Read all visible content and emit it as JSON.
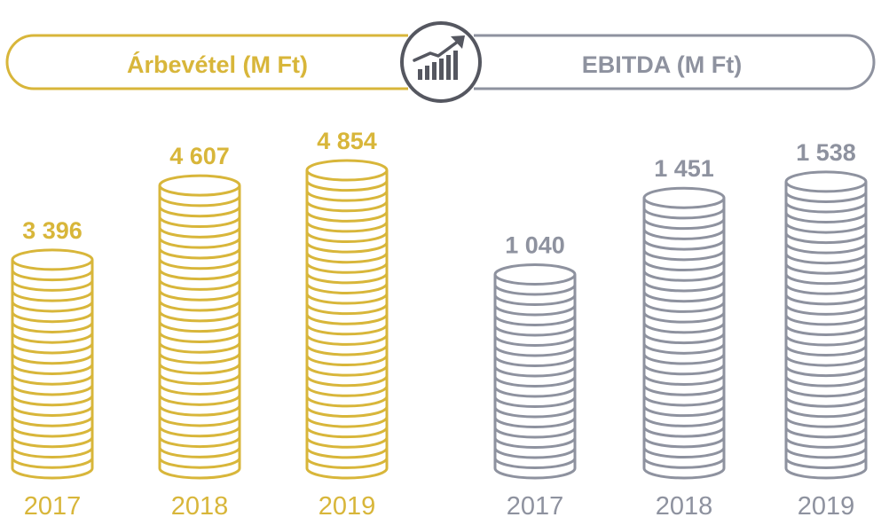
{
  "colors": {
    "gold": "#D8B63A",
    "gray": "#8E929F",
    "dark": "#555760"
  },
  "header": {
    "left_title": "Árbevétel (M Ft)",
    "right_title": "EBITDA (M Ft)",
    "icon": "growth-chart-icon"
  },
  "chart_data": [
    {
      "type": "bar",
      "title": "Árbevétel (M Ft)",
      "categories": [
        "2017",
        "2018",
        "2019"
      ],
      "values": [
        3396,
        4607,
        4854
      ],
      "value_labels": [
        "3 396",
        "4 607",
        "4 854"
      ],
      "color": "#D8B63A"
    },
    {
      "type": "bar",
      "title": "EBITDA (M Ft)",
      "categories": [
        "2017",
        "2018",
        "2019"
      ],
      "values": [
        1040,
        1451,
        1538
      ],
      "value_labels": [
        "1 040",
        "1 451",
        "1 538"
      ],
      "color": "#8E929F"
    }
  ]
}
